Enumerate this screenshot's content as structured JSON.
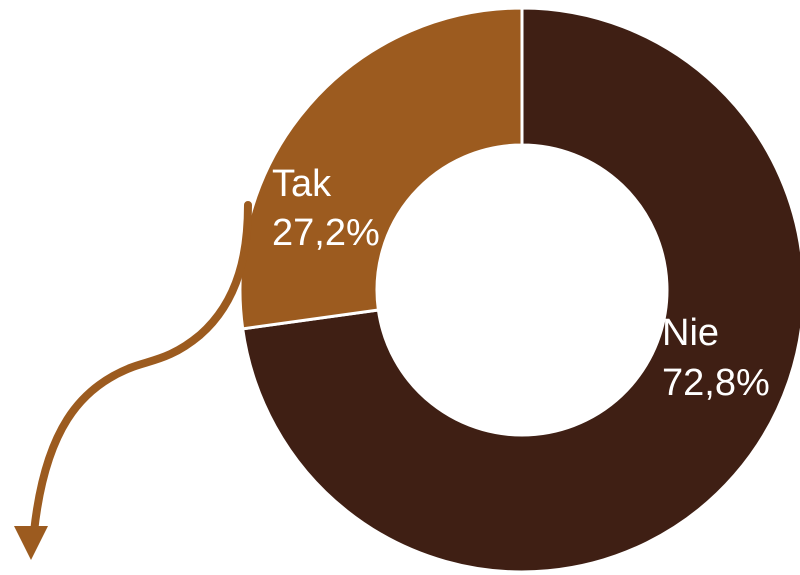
{
  "chart_data": {
    "type": "pie",
    "variant": "donut",
    "categories": [
      "Nie",
      "Tak"
    ],
    "values": [
      72.8,
      27.2
    ],
    "value_labels": [
      "72,8%",
      "27,2%"
    ],
    "colors": [
      "#3f1f14",
      "#9c5b1f"
    ],
    "title": "",
    "legend": "none",
    "annotation": {
      "type": "arrow",
      "color": "#9c5b1f",
      "from_category": "Tak",
      "direction": "down-left"
    }
  }
}
